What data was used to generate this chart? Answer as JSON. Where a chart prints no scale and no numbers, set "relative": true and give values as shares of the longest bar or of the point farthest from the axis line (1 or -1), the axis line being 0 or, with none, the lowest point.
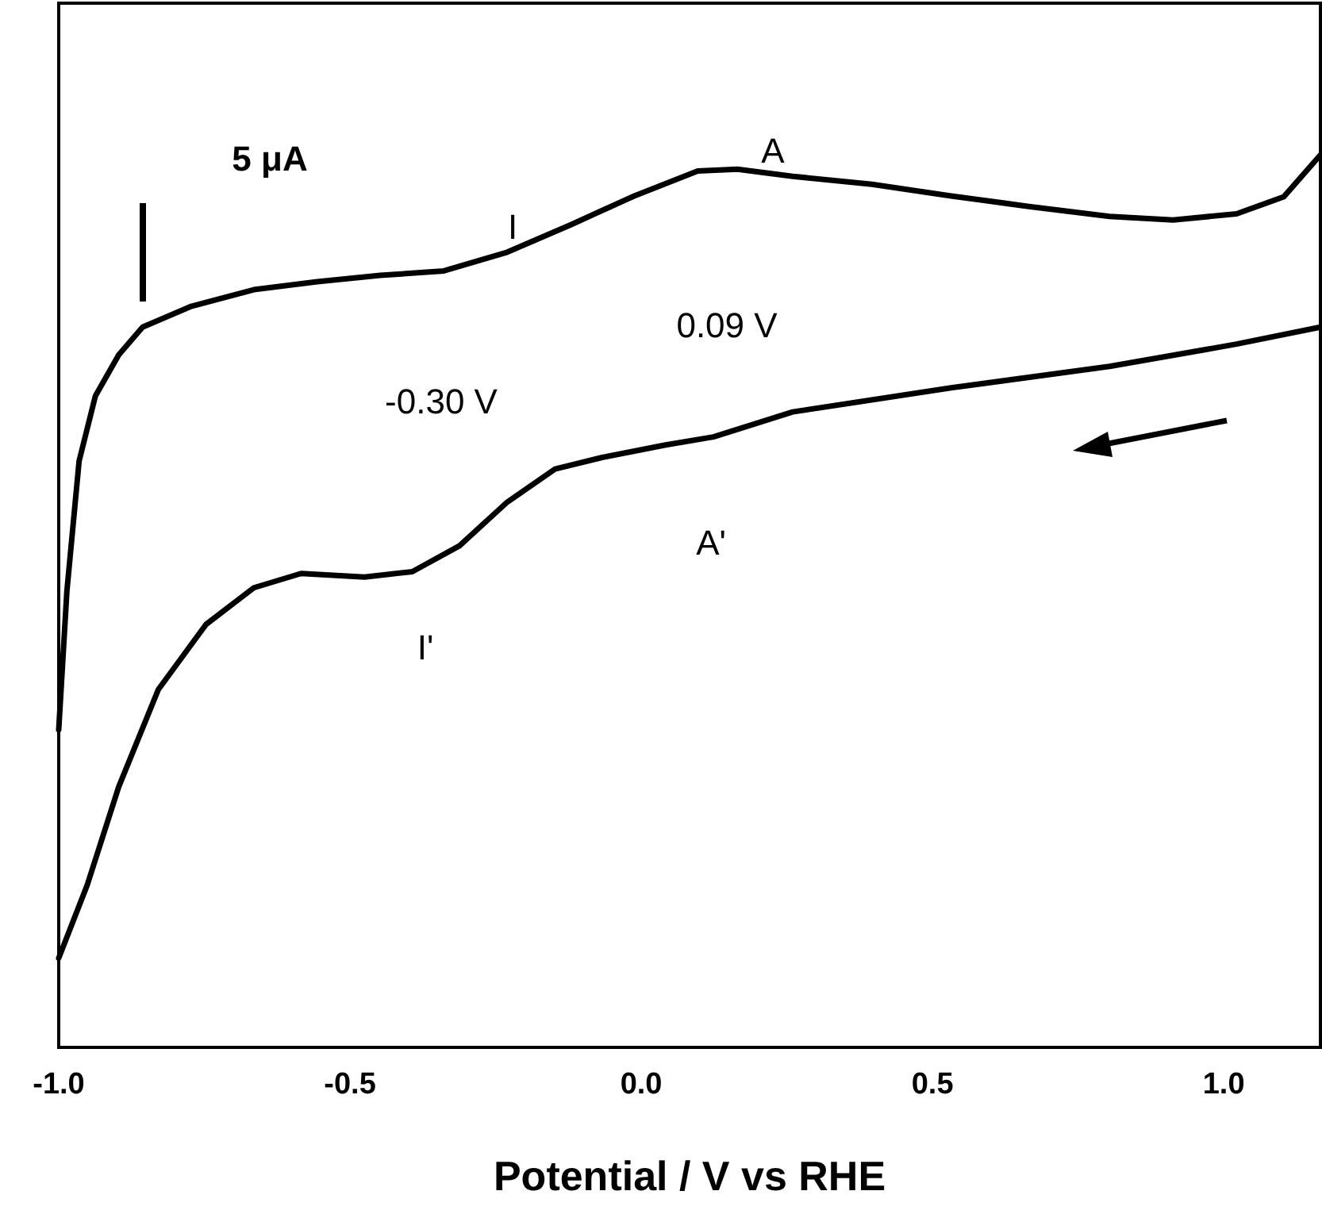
{
  "chart_data": {
    "type": "line",
    "xlabel": "Potential / V vs RHE",
    "relative": true,
    "tick_labels": "x",
    "xlim": [
      -1.0,
      1.166
    ],
    "xticks": [
      {
        "value": -1,
        "label": "-1.0"
      },
      {
        "value": -0.5,
        "label": "-0.5"
      },
      {
        "value": 0,
        "label": "0.0"
      },
      {
        "value": 0.5,
        "label": "0.5"
      },
      {
        "value": 1,
        "label": "1.0"
      }
    ],
    "series": [
      {
        "color": "#000000",
        "x": [
          -1.0,
          -0.986,
          -0.965,
          -0.937,
          -0.897,
          -0.856,
          -0.774,
          -0.665,
          -0.556,
          -0.448,
          -0.339,
          -0.23,
          -0.12,
          -0.012,
          0.097,
          0.165,
          0.26,
          0.396,
          0.532,
          0.668,
          0.804,
          0.913,
          1.022,
          1.103,
          1.166
        ],
        "values": [
          0.356,
          0.511,
          0.657,
          0.73,
          0.776,
          0.807,
          0.83,
          0.849,
          0.858,
          0.865,
          0.87,
          0.891,
          0.922,
          0.954,
          0.982,
          0.984,
          0.976,
          0.967,
          0.954,
          0.942,
          0.931,
          0.927,
          0.934,
          0.953,
          1.0
        ]
      },
      {
        "color": "#000000",
        "x": [
          1.166,
          1.022,
          0.804,
          0.532,
          0.26,
          0.124,
          0.042,
          -0.067,
          -0.148,
          -0.23,
          -0.312,
          -0.393,
          -0.475,
          -0.584,
          -0.665,
          -0.747,
          -0.829,
          -0.897,
          -0.951,
          -1.0
        ],
        "values": [
          0.807,
          0.788,
          0.763,
          0.739,
          0.712,
          0.684,
          0.675,
          0.661,
          0.648,
          0.611,
          0.562,
          0.533,
          0.527,
          0.531,
          0.515,
          0.474,
          0.401,
          0.292,
          0.182,
          0.1
        ]
      }
    ],
    "annotations": [
      "5 μA",
      "A",
      "I",
      "0.09 V",
      "-0.30 V",
      "A'",
      "I'"
    ]
  }
}
